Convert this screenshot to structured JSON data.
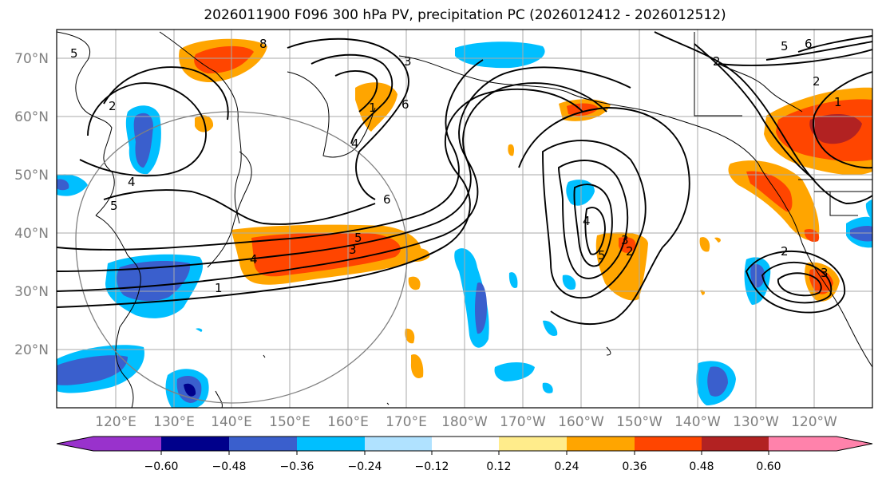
{
  "title": "2026011900 F096 300 hPa PV, precipitation PC (2026012412 - 2026012512)",
  "map": {
    "lat_labels": [
      "70°N",
      "60°N",
      "50°N",
      "40°N",
      "30°N",
      "20°N"
    ],
    "lon_labels": [
      "120°E",
      "130°E",
      "140°E",
      "150°E",
      "160°E",
      "170°E",
      "180°W",
      "170°W",
      "160°W",
      "150°W",
      "140°W",
      "130°W",
      "120°W"
    ],
    "pv_contour_labels": [
      "5",
      "2",
      "4",
      "5",
      "8",
      "3",
      "1",
      "4",
      "6",
      "5",
      "3",
      "1",
      "6",
      "4",
      "2",
      "5",
      "2",
      "2",
      "1",
      "6",
      "5",
      "4",
      "3",
      "2",
      "3"
    ]
  },
  "colorbar": {
    "tick_labels": [
      "−0.60",
      "−0.48",
      "−0.36",
      "−0.24",
      "−0.12",
      "0.12",
      "0.24",
      "0.36",
      "0.48",
      "0.60"
    ],
    "colors": [
      "#9932cc",
      "#00008b",
      "#3a5fcd",
      "#00bfff",
      "#b0e2ff",
      "#ffffff",
      "#ffec8b",
      "#ffa500",
      "#ff4500",
      "#b22222",
      "#ff82ab"
    ]
  },
  "palette": {
    "deep_blue": "#00008b",
    "blue": "#3a5fcd",
    "sky": "#00bfff",
    "light_sky": "#b0e2ff",
    "light_yellow": "#ffec8b",
    "orange": "#ffa500",
    "red_orange": "#ff4500",
    "firebrick": "#b22222",
    "grid": "#aaaaaa",
    "coast": "#000000"
  }
}
